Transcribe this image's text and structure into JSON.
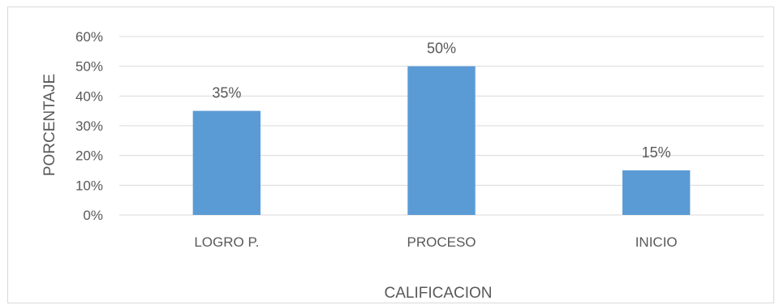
{
  "chart_data": {
    "type": "bar",
    "categories": [
      "LOGRO P.",
      "PROCESO",
      "INICIO"
    ],
    "values": [
      35,
      50,
      15
    ],
    "data_labels": [
      "35%",
      "50%",
      "15%"
    ],
    "xlabel": "CALIFICACION",
    "ylabel": "PORCENTAJE",
    "ylim": [
      0,
      60
    ],
    "yticks": [
      0,
      10,
      20,
      30,
      40,
      50,
      60
    ],
    "ytick_labels": [
      "0%",
      "10%",
      "20%",
      "30%",
      "40%",
      "50%",
      "60%"
    ],
    "grid": true,
    "legend": "none",
    "bar_color": "#5b9bd5"
  }
}
